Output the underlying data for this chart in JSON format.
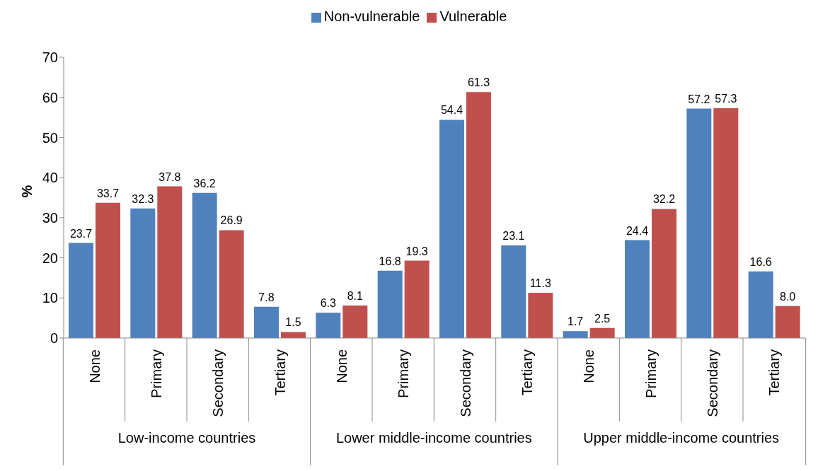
{
  "chart_data": {
    "type": "bar",
    "ylabel": "%",
    "categories": [
      "None",
      "Primary",
      "Secondary",
      "Tertiary",
      "None",
      "Primary",
      "Secondary",
      "Tertiary",
      "None",
      "Primary",
      "Secondary",
      "Tertiary"
    ],
    "annotations": [
      "Low-income countries",
      "Lower middle-income countries",
      "Upper middle-income countries"
    ],
    "series": [
      {
        "name": "Non-vulnerable",
        "color": "#4f81bd",
        "values": [
          23.7,
          32.3,
          36.2,
          7.8,
          6.3,
          16.8,
          54.4,
          23.1,
          1.7,
          24.4,
          57.2,
          16.6
        ],
        "value_labels": [
          "23.7",
          "32.3",
          "36.2",
          "7.8",
          "6.3",
          "16.8",
          "54.4",
          "23.1",
          "1.7",
          "24.4",
          "57.2",
          "16.6"
        ]
      },
      {
        "name": "Vulnerable",
        "color": "#c0504d",
        "values": [
          33.7,
          37.8,
          26.9,
          1.5,
          8.1,
          19.3,
          61.3,
          11.3,
          2.5,
          32.2,
          57.3,
          8.0
        ],
        "value_labels": [
          "33.7",
          "37.8",
          "26.9",
          "1.5",
          "8.1",
          "19.3",
          "61.3",
          "11.3",
          "2.5",
          "32.2",
          "57.3",
          "8.0"
        ]
      }
    ],
    "ylim": [
      0,
      70
    ],
    "yticks": [
      0,
      10,
      20,
      30,
      40,
      50,
      60,
      70
    ],
    "grid": false,
    "legend": "top"
  }
}
